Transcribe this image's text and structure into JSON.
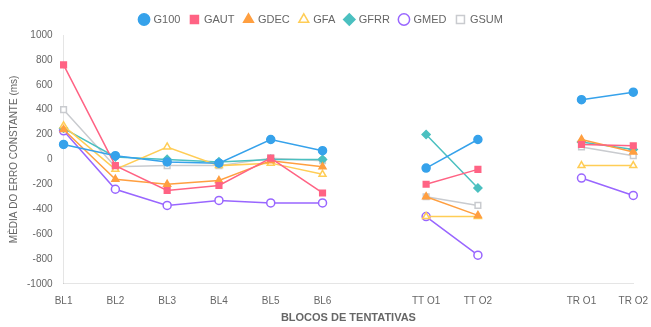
{
  "chart_data": {
    "type": "line",
    "xlabel": "BLOCOS DE TENTATIVAS",
    "ylabel": "MÈDIA DO ERRO CONSTANTE (ms)",
    "categories": [
      "BL1",
      "BL2",
      "BL3",
      "BL4",
      "BL5",
      "BL6",
      null,
      "TT O1",
      "TT O2",
      null,
      "TR O1",
      "TR O2"
    ],
    "series": [
      {
        "name": "G100",
        "marker": "circle",
        "values": [
          120,
          30,
          -20,
          -30,
          160,
          70,
          null,
          -70,
          160,
          null,
          480,
          540
        ]
      },
      {
        "name": "GAUT",
        "marker": "square",
        "values": [
          760,
          -50,
          -250,
          -210,
          10,
          -270,
          null,
          -200,
          -80,
          null,
          120,
          110
        ]
      },
      {
        "name": "GDEC",
        "marker": "triangle",
        "values": [
          240,
          -160,
          -200,
          -170,
          -10,
          -60,
          null,
          -300,
          -450,
          null,
          160,
          60
        ]
      },
      {
        "name": "GFA",
        "marker": "triangle-open",
        "values": [
          270,
          -80,
          100,
          -50,
          -30,
          -120,
          null,
          -460,
          -460,
          null,
          -50,
          -50
        ]
      },
      {
        "name": "GFRR",
        "marker": "diamond",
        "values": [
          250,
          20,
          0,
          -20,
          0,
          0,
          null,
          200,
          -230,
          null,
          140,
          80
        ]
      },
      {
        "name": "GMED",
        "marker": "circle-open",
        "values": [
          230,
          -240,
          -370,
          -330,
          -350,
          -350,
          null,
          -460,
          -770,
          null,
          -150,
          -290
        ]
      },
      {
        "name": "GSUM",
        "marker": "square-open",
        "values": [
          400,
          -60,
          -50,
          -50,
          10,
          -10,
          null,
          -300,
          -370,
          null,
          100,
          30
        ]
      }
    ],
    "ylim": [
      -1000,
      1000
    ],
    "yticks": [
      -1000,
      -800,
      -600,
      -400,
      -200,
      0,
      200,
      400,
      600,
      800,
      1000
    ],
    "grid": false,
    "legend": "top"
  }
}
